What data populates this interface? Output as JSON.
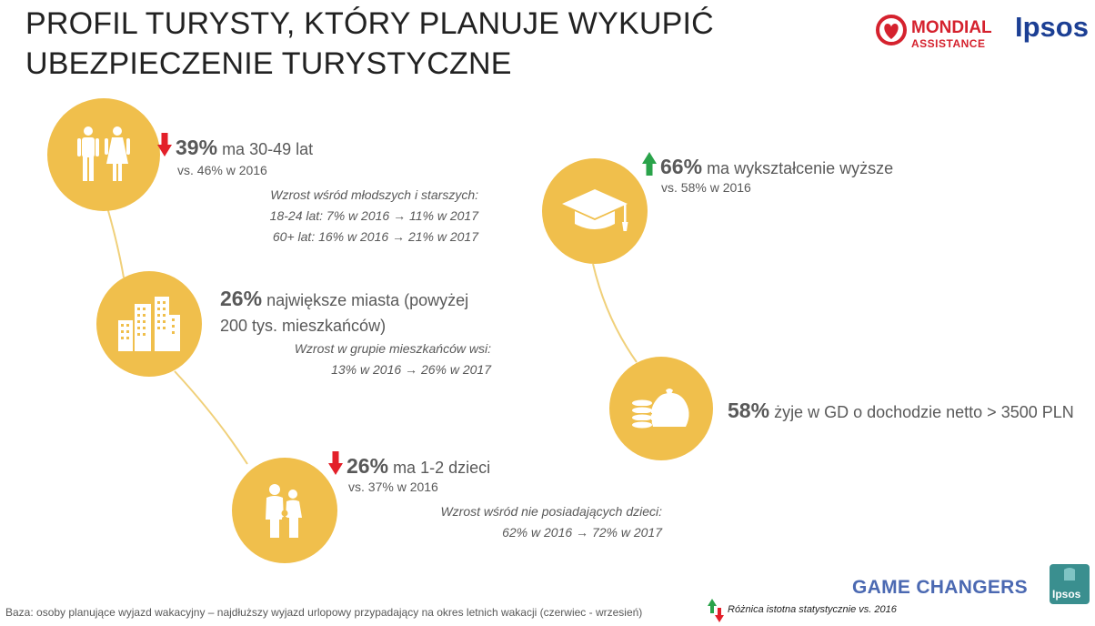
{
  "title": "PROFIL TURYSTY, KTÓRY PLANUJE WYKUPIĆ UBEZPIECZENIE TURYSTYCZNE",
  "logos": {
    "mondial_line1": "MONDIAL",
    "mondial_line2": "ASSISTANCE",
    "ipsos": "Ipsos",
    "game_changers": "GAME CHANGERS",
    "ipsos_badge": "Ipsos"
  },
  "colors": {
    "circle": "#f0bf4c",
    "connector": "#f0d07a",
    "down_arrow": "#e3202a",
    "up_arrow": "#2aa34a"
  },
  "items": {
    "age": {
      "icon": "people-icon",
      "trend": "down",
      "percent": "39%",
      "text": "ma 30-49 lat",
      "vs": "vs. 46% w 2016",
      "note1": "Wzrost wśród młodszych i starszych:",
      "note2_a": "18-24 lat: 7% w 2016",
      "note2_b": "11% w 2017",
      "note3_a": "60+ lat: 16% w 2016",
      "note3_b": "21% w 2017"
    },
    "city": {
      "icon": "buildings-icon",
      "percent": "26%",
      "text1": "największe miasta (powyżej",
      "text2": "200 tys. mieszkańców)",
      "note1": "Wzrost w grupie mieszkańców wsi:",
      "note2_a": "13% w 2016",
      "note2_b": "26% w 2017"
    },
    "children": {
      "icon": "family-icon",
      "trend": "down",
      "percent": "26%",
      "text": "ma 1-2 dzieci",
      "vs": "vs. 37% w 2016",
      "note1": "Wzrost wśród nie posiadających dzieci:",
      "note2_a": "62% w 2016",
      "note2_b": "72% w 2017"
    },
    "education": {
      "icon": "graduation-cap-icon",
      "trend": "up",
      "percent": "66%",
      "text": "ma wykształcenie wyższe",
      "vs": "vs. 58% w 2016"
    },
    "income": {
      "icon": "money-bag-icon",
      "percent": "58%",
      "text": "żyje w GD o dochodzie netto > 3500 PLN"
    }
  },
  "footer": {
    "base": "Baza: osoby planujące wyjazd wakacyjny – najdłuższy wyjazd urlopowy przypadający na okres letnich wakacji (czerwiec - wrzesień)",
    "legend": "Różnica istotna statystycznie vs. 2016"
  }
}
